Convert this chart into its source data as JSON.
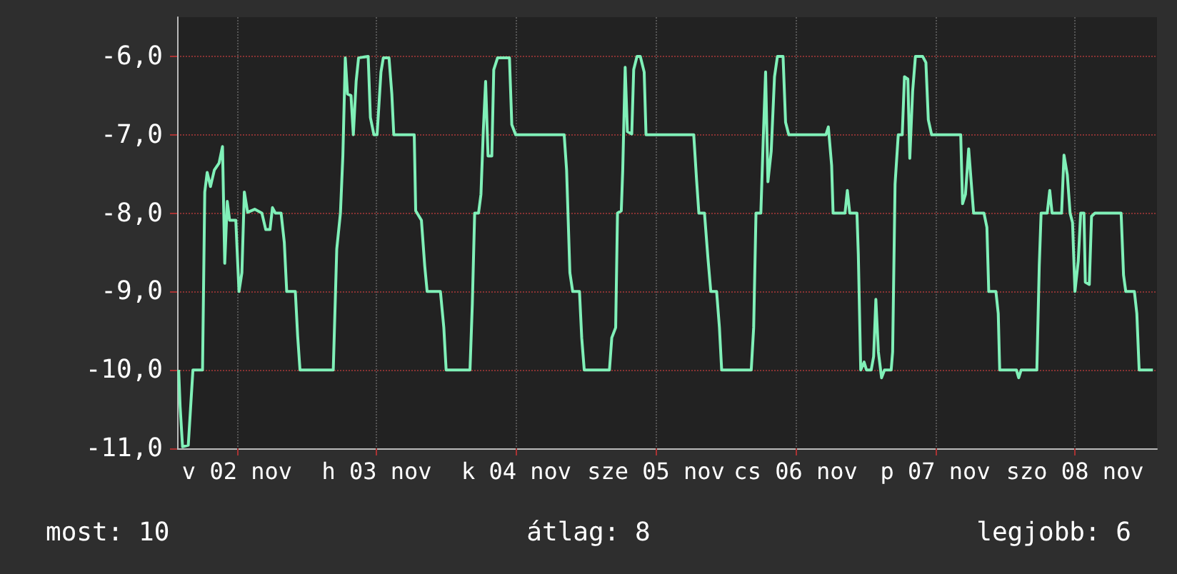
{
  "chart_data": {
    "type": "line",
    "annotations": [
      "most: 10",
      "átlag: 8",
      "legjobb: 6"
    ],
    "x": [
      "--11-02T01:58",
      "--11-02T02:13",
      "--11-02T02:38",
      "--11-02T03:37",
      "--11-02T04:00",
      "--11-02T04:25",
      "--11-02T06:04",
      "--11-02T06:27",
      "--11-02T06:52",
      "--11-02T07:26",
      "--11-02T08:06",
      "--11-02T08:55",
      "--11-02T09:30",
      "--11-02T09:53",
      "--11-02T10:19",
      "--11-02T10:43",
      "--11-02T11:47",
      "--11-02T12:20",
      "--11-02T12:50",
      "--11-02T13:15",
      "--11-02T13:49",
      "--11-02T15:02",
      "--11-02T16:16",
      "--11-02T16:56",
      "--11-02T17:40",
      "--11-02T18:05",
      "--11-02T18:35",
      "--11-02T19:34",
      "--11-02T20:07",
      "--11-02T20:32",
      "--11-02T22:01",
      "--11-02T22:25",
      "--11-02T22:49",
      "--11-03T04:32",
      "--11-03T05:08",
      "--11-03T05:46",
      "--11-03T06:11",
      "--11-03T06:36",
      "--11-03T06:59",
      "--11-03T07:35",
      "--11-03T07:59",
      "--11-03T08:28",
      "--11-03T08:53",
      "--11-03T10:32",
      "--11-03T10:55",
      "--11-03T11:31",
      "--11-03T12:04",
      "--11-03T12:44",
      "--11-03T13:08",
      "--11-03T14:07",
      "--11-03T14:36",
      "--11-03T14:56",
      "--11-03T18:27",
      "--11-03T18:42",
      "--11-03T19:41",
      "--11-03T20:15",
      "--11-03T20:40",
      "--11-03T22:57",
      "--11-03T23:32",
      "--11-03T23:56",
      "--11-04T04:02",
      "--11-04T04:26",
      "--11-04T04:50",
      "--11-04T05:30",
      "--11-04T05:55",
      "--11-04T06:19",
      "--11-04T06:43",
      "--11-04T07:08",
      "--11-04T07:47",
      "--11-04T08:07",
      "--11-04T08:46",
      "--11-04T10:49",
      "--11-04T11:13",
      "--11-04T11:53",
      "--11-04T20:13",
      "--11-04T20:38",
      "--11-04T21:12",
      "--11-04T21:41",
      "--11-04T22:51",
      "--11-04T23:14",
      "--11-04T23:40",
      "--11-05T04:00",
      "--11-05T04:24",
      "--11-05T05:04",
      "--11-05T05:23",
      "--11-05T06:02",
      "--11-05T06:17",
      "--11-05T06:42",
      "--11-05T07:05",
      "--11-05T07:50",
      "--11-05T08:10",
      "--11-05T08:44",
      "--11-05T09:18",
      "--11-05T09:58",
      "--11-05T10:17",
      "--11-05T18:29",
      "--11-05T18:58",
      "--11-05T19:22",
      "--11-05T20:20",
      "--11-05T20:56",
      "--11-05T21:25",
      "--11-05T22:25",
      "--11-05T22:54",
      "--11-05T23:17",
      "--11-06T04:22",
      "--11-06T04:47",
      "--11-06T05:11",
      "--11-06T06:01",
      "--11-06T06:25",
      "--11-06T06:50",
      "--11-06T07:14",
      "--11-06T07:48",
      "--11-06T08:22",
      "--11-06T08:52",
      "--11-06T09:50",
      "--11-06T10:16",
      "--11-06T10:49",
      "--11-06T17:12",
      "--11-06T17:37",
      "--11-06T18:11",
      "--11-06T18:26",
      "--11-06T20:29",
      "--11-06T20:53",
      "--11-06T21:18",
      "--11-06T22:32",
      "--11-06T22:46",
      "--11-06T23:11",
      "--11-06T23:46",
      "--11-07T00:10",
      "--11-07T00:59",
      "--11-07T01:24",
      "--11-07T01:47",
      "--11-07T02:13",
      "--11-07T02:46",
      "--11-07T03:16",
      "--11-07T04:25",
      "--11-07T04:40",
      "--11-07T05:05",
      "--11-07T05:38",
      "--11-07T06:19",
      "--11-07T06:42",
      "--11-07T07:17",
      "--11-07T07:37",
      "--11-07T08:06",
      "--11-07T08:35",
      "--11-07T09:49",
      "--11-07T10:23",
      "--11-07T10:48",
      "--11-07T11:22",
      "--11-07T16:22",
      "--11-07T16:41",
      "--11-07T17:11",
      "--11-07T17:44",
      "--11-07T18:10",
      "--11-07T18:35",
      "--11-07T20:22",
      "--11-07T20:52",
      "--11-07T21:11",
      "--11-07T22:25",
      "--11-07T22:49",
      "--11-07T23:04",
      "--11-08T01:56",
      "--11-08T02:20",
      "--11-08T02:45",
      "--11-08T05:27",
      "--11-08T05:52",
      "--11-08T06:11",
      "--11-08T07:14",
      "--11-08T07:40",
      "--11-08T08:04",
      "--11-08T09:42",
      "--11-08T10:07",
      "--11-08T10:41",
      "--11-08T11:10",
      "--11-08T11:35",
      "--11-08T12:00",
      "--11-08T12:34",
      "--11-08T12:59",
      "--11-08T13:33",
      "--11-08T13:47",
      "--11-08T14:28",
      "--11-08T14:51",
      "--11-08T15:26",
      "--11-08T19:56",
      "--11-08T20:21",
      "--11-08T20:44",
      "--11-08T22:13",
      "--11-08T22:38",
      "--11-08T23:02",
      "--11-09T01:24"
    ],
    "series": [
      {
        "color": "#80f0b8",
        "values": [
          -10.0,
          -10.47,
          -10.98,
          -10.96,
          -10.5,
          -10.0,
          -10.0,
          -7.73,
          -7.48,
          -7.66,
          -7.45,
          -7.36,
          -7.15,
          -8.64,
          -7.85,
          -8.09,
          -8.09,
          -9.0,
          -8.76,
          -7.73,
          -7.99,
          -7.95,
          -8.0,
          -8.21,
          -8.21,
          -7.93,
          -8.0,
          -8.0,
          -8.37,
          -9.0,
          -9.0,
          -9.57,
          -10.0,
          -10.0,
          -8.46,
          -8.0,
          -7.27,
          -6.02,
          -6.48,
          -6.5,
          -7.0,
          -6.32,
          -6.02,
          -6.0,
          -6.78,
          -7.0,
          -7.0,
          -6.2,
          -6.02,
          -6.02,
          -6.48,
          -7.0,
          -7.0,
          -7.97,
          -8.09,
          -8.67,
          -9.0,
          -9.0,
          -9.46,
          -10.0,
          -10.0,
          -9.16,
          -8.0,
          -8.0,
          -7.76,
          -6.96,
          -6.32,
          -7.27,
          -7.27,
          -6.17,
          -6.02,
          -6.02,
          -6.87,
          -7.0,
          -7.0,
          -7.45,
          -8.76,
          -9.0,
          -9.0,
          -9.59,
          -10.0,
          -10.0,
          -9.59,
          -9.46,
          -8.0,
          -7.97,
          -7.45,
          -6.14,
          -6.96,
          -6.99,
          -6.17,
          -6.0,
          -6.0,
          -6.2,
          -7.0,
          -7.0,
          -7.57,
          -8.0,
          -8.0,
          -8.58,
          -9.0,
          -9.0,
          -9.46,
          -10.0,
          -10.0,
          -9.46,
          -8.0,
          -8.0,
          -7.09,
          -6.2,
          -7.6,
          -7.21,
          -6.26,
          -6.0,
          -6.0,
          -6.84,
          -7.0,
          -7.0,
          -6.9,
          -7.39,
          -8.0,
          -8.0,
          -7.71,
          -8.0,
          -8.0,
          -8.52,
          -10.0,
          -9.9,
          -10.0,
          -10.0,
          -9.83,
          -9.1,
          -9.77,
          -10.1,
          -10.0,
          -10.0,
          -9.77,
          -7.63,
          -7.0,
          -7.0,
          -6.26,
          -6.29,
          -7.3,
          -6.45,
          -6.0,
          -6.0,
          -6.08,
          -6.81,
          -7.0,
          -7.0,
          -7.88,
          -7.76,
          -7.18,
          -7.6,
          -8.0,
          -8.0,
          -8.18,
          -9.0,
          -9.0,
          -9.28,
          -10.0,
          -10.0,
          -10.1,
          -10.0,
          -10.0,
          -8.67,
          -8.0,
          -8.0,
          -7.71,
          -8.0,
          -8.0,
          -7.26,
          -7.51,
          -8.0,
          -8.12,
          -9.0,
          -8.61,
          -8.0,
          -8.0,
          -8.88,
          -8.91,
          -8.04,
          -8.0,
          -8.0,
          -8.79,
          -9.0,
          -9.0,
          -9.28,
          -10.0,
          -10.0
        ]
      }
    ],
    "xlim": [
      "--11-02T01:42",
      "--11-09T02:06"
    ],
    "xticks": [
      {
        "value": "--11-02T12:00",
        "label": "v 02 nov"
      },
      {
        "value": "--11-03T12:00",
        "label": "h 03 nov"
      },
      {
        "value": "--11-04T12:00",
        "label": "k 04 nov"
      },
      {
        "value": "--11-05T12:00",
        "label": "sze 05 nov"
      },
      {
        "value": "--11-06T12:00",
        "label": "cs 06 nov"
      },
      {
        "value": "--11-07T12:00",
        "label": "p 07 nov"
      },
      {
        "value": "--11-08T12:00",
        "label": "szo 08 nov"
      }
    ],
    "ylim": [
      -11,
      -5.5
    ],
    "yticks": [
      {
        "value": -11,
        "label": "-11,0"
      },
      {
        "value": -10,
        "label": "-10,0"
      },
      {
        "value": -9,
        "label": "-9,0"
      },
      {
        "value": -8,
        "label": "-8,0"
      },
      {
        "value": -7,
        "label": "-7,0"
      },
      {
        "value": -6,
        "label": "-6,0"
      }
    ],
    "grid": true,
    "marker": "none",
    "line_style": "solid"
  }
}
